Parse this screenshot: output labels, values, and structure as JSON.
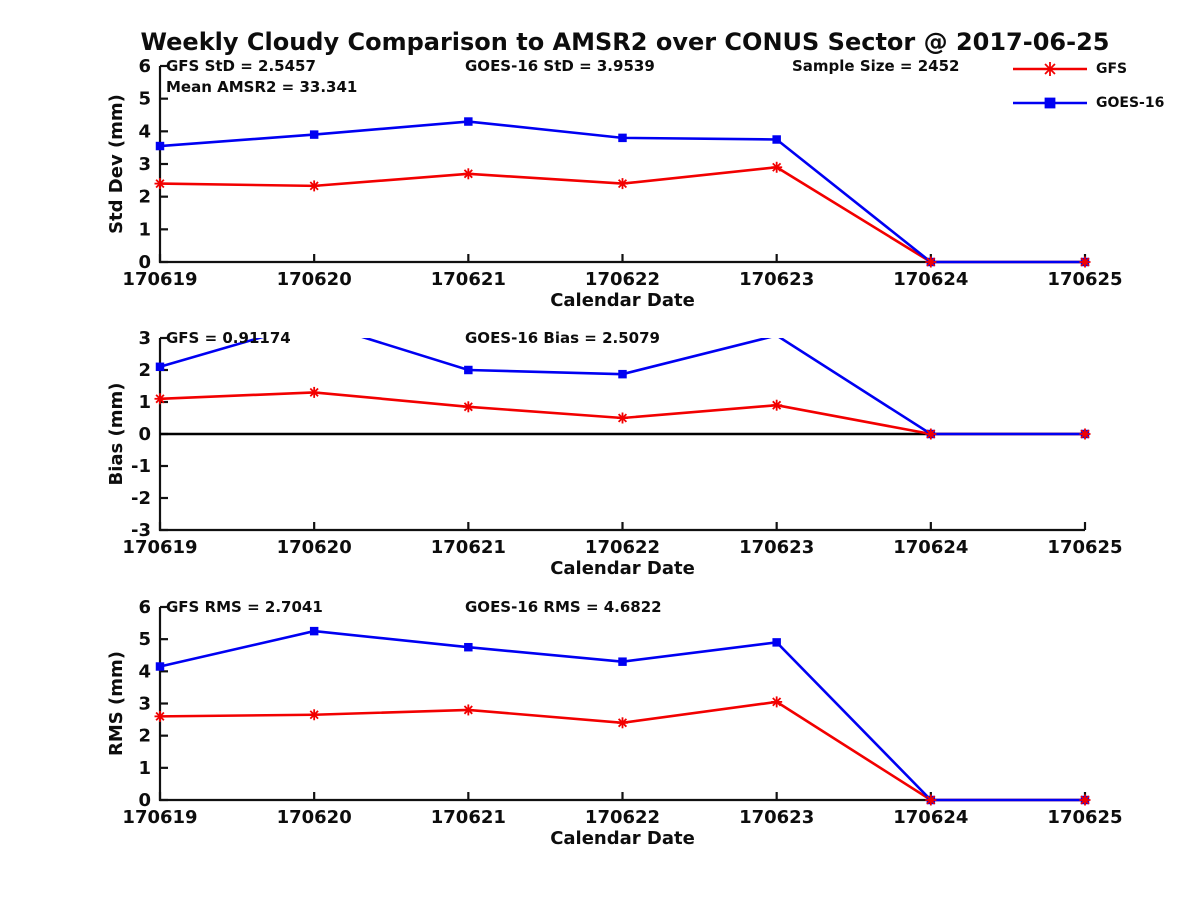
{
  "title": "Weekly Cloudy Comparison to AMSR2 over CONUS Sector @ 2017-06-25",
  "colors": {
    "gfs": "#f20000",
    "goes16": "#0000f2",
    "axis": "#111111",
    "zero_line": "#000000"
  },
  "legend": {
    "entries": [
      {
        "label": "GFS",
        "color": "#f20000",
        "marker": "asterisk"
      },
      {
        "label": "GOES-16",
        "color": "#0000f2",
        "marker": "square"
      }
    ]
  },
  "chart_data": [
    {
      "type": "line",
      "ylabel": "Std Dev (mm)",
      "xlabel": "Calendar Date",
      "ylim": [
        0,
        6
      ],
      "yticks": [
        0,
        1,
        2,
        3,
        4,
        5,
        6
      ],
      "categories": [
        "170619",
        "170620",
        "170621",
        "170622",
        "170623",
        "170624",
        "170625"
      ],
      "series": [
        {
          "name": "GFS",
          "color": "#f20000",
          "marker": "asterisk",
          "values": [
            2.4,
            2.33,
            2.7,
            2.4,
            2.9,
            0,
            0
          ]
        },
        {
          "name": "GOES-16",
          "color": "#0000f2",
          "marker": "square",
          "values": [
            3.55,
            3.9,
            4.3,
            3.8,
            3.75,
            0,
            0
          ]
        }
      ],
      "zero_line": false,
      "annotations": [
        {
          "text": "GFS StD = 2.5457",
          "x": 166,
          "row": 0
        },
        {
          "text": "Mean AMSR2 = 33.341",
          "x": 166,
          "row": 1
        },
        {
          "text": "GOES-16 StD = 3.9539",
          "x": 465,
          "row": 0
        },
        {
          "text": "Sample Size = 2452",
          "x": 792,
          "row": 0
        }
      ]
    },
    {
      "type": "line",
      "ylabel": "Bias (mm)",
      "xlabel": "Calendar Date",
      "ylim": [
        -3,
        3
      ],
      "yticks": [
        -3,
        -2,
        -1,
        0,
        1,
        2,
        3
      ],
      "categories": [
        "170619",
        "170620",
        "170621",
        "170622",
        "170623",
        "170624",
        "170625"
      ],
      "series": [
        {
          "name": "GFS",
          "color": "#f20000",
          "marker": "asterisk",
          "values": [
            1.1,
            1.3,
            0.85,
            0.5,
            0.9,
            0,
            0
          ]
        },
        {
          "name": "GOES-16",
          "color": "#0000f2",
          "marker": "square",
          "values": [
            2.1,
            3.5,
            2.0,
            1.87,
            3.08,
            0,
            0
          ]
        }
      ],
      "zero_line": true,
      "annotations": [
        {
          "text": "GFS = 0.91174",
          "x": 166,
          "row": 0
        },
        {
          "text": "GOES-16 Bias = 2.5079",
          "x": 465,
          "row": 0
        }
      ]
    },
    {
      "type": "line",
      "ylabel": "RMS (mm)",
      "xlabel": "Calendar Date",
      "ylim": [
        0,
        6
      ],
      "yticks": [
        0,
        1,
        2,
        3,
        4,
        5,
        6
      ],
      "categories": [
        "170619",
        "170620",
        "170621",
        "170622",
        "170623",
        "170624",
        "170625"
      ],
      "series": [
        {
          "name": "GFS",
          "color": "#f20000",
          "marker": "asterisk",
          "values": [
            2.6,
            2.65,
            2.8,
            2.4,
            3.05,
            0,
            0
          ]
        },
        {
          "name": "GOES-16",
          "color": "#0000f2",
          "marker": "square",
          "values": [
            4.15,
            5.25,
            4.75,
            4.3,
            4.9,
            0,
            0
          ]
        }
      ],
      "zero_line": false,
      "annotations": [
        {
          "text": "GFS RMS = 2.7041",
          "x": 166,
          "row": 0
        },
        {
          "text": "GOES-16 RMS = 4.6822",
          "x": 465,
          "row": 0
        }
      ]
    }
  ]
}
